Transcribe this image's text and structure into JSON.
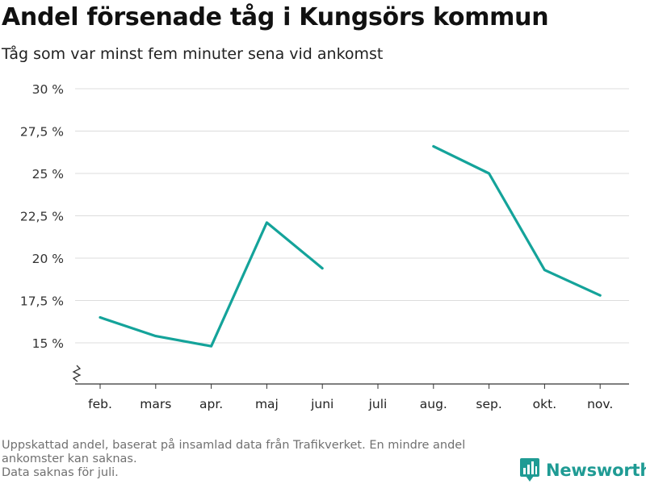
{
  "title": "Andel försenade tåg i Kungsörs kommun",
  "subtitle": "Tåg som var minst fem minuter sena vid ankomst",
  "footer": {
    "line1": "Uppskattad andel, baserat på insamlad data från Trafikverket. En mindre andel",
    "line2": "ankomster kan saknas.",
    "line3": "Data saknas för juli."
  },
  "brand": {
    "name": "Newsworthy",
    "color": "#1f9b94"
  },
  "chart_data": {
    "type": "line",
    "title": "Andel försenade tåg i Kungsörs kommun",
    "subtitle": "Tåg som var minst fem minuter sena vid ankomst",
    "xlabel": "",
    "ylabel": "",
    "categories": [
      "feb.",
      "mars",
      "apr.",
      "maj",
      "juni",
      "juli",
      "aug.",
      "sep.",
      "okt.",
      "nov."
    ],
    "series": [
      {
        "values": [
          16.5,
          15.4,
          14.8,
          22.1,
          19.4,
          null,
          26.6,
          25.0,
          19.3,
          17.8
        ]
      }
    ],
    "yticks": [
      15,
      17.5,
      20,
      22.5,
      25,
      27.5,
      30
    ],
    "ytick_labels": [
      "15 %",
      "17,5 %",
      "20 %",
      "22,5 %",
      "25 %",
      "27,5 %",
      "30 %"
    ],
    "ylim": [
      12.6,
      30
    ],
    "y_axis_break": true,
    "grid": true,
    "line_color": "#14a39a"
  }
}
